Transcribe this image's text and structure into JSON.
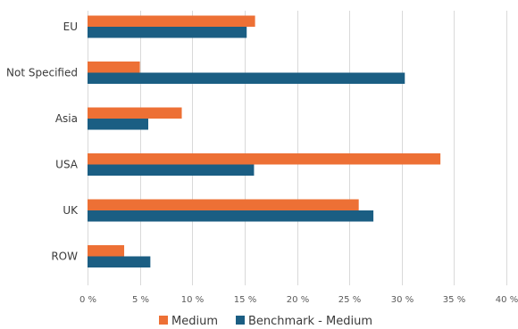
{
  "chart_data": {
    "type": "bar",
    "orientation": "horizontal",
    "categories": [
      "EU",
      "Not Specified",
      "Asia",
      "USA",
      "UK",
      "ROW"
    ],
    "series": [
      {
        "name": "Medium",
        "color": "#ED7035",
        "values": [
          16.0,
          5.0,
          9.0,
          33.7,
          25.9,
          3.5
        ]
      },
      {
        "name": "Benchmark - Medium",
        "color": "#1B5E83",
        "values": [
          15.2,
          30.3,
          5.8,
          15.9,
          27.3,
          6.0
        ]
      }
    ],
    "xlim": [
      0,
      40
    ],
    "xticks": [
      0,
      5,
      10,
      15,
      20,
      25,
      30,
      35,
      40
    ],
    "tick_suffix": " %",
    "grid": true,
    "legend_position": "bottom-center"
  }
}
